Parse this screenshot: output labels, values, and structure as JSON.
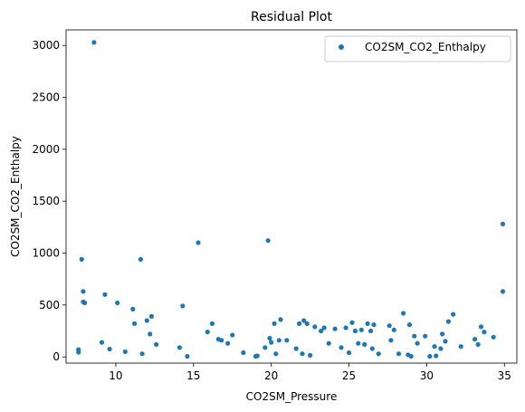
{
  "chart_data": {
    "type": "scatter",
    "title": "Residual Plot",
    "xlabel": "CO2SM_Pressure",
    "ylabel": "CO2SM_CO2_Enthalpy",
    "xlim": [
      6.8,
      35.8
    ],
    "ylim": [
      -60,
      3150
    ],
    "xticks": [
      10,
      15,
      20,
      25,
      30,
      35
    ],
    "yticks": [
      0,
      500,
      1000,
      1500,
      2000,
      2500,
      3000
    ],
    "grid": false,
    "legend_position": "top-right",
    "series": [
      {
        "name": "CO2SM_CO2_Enthalpy",
        "color": "#1f77b4",
        "x": [
          7.6,
          7.6,
          7.8,
          7.9,
          7.9,
          8.0,
          8.6,
          9.1,
          9.3,
          9.6,
          10.1,
          10.6,
          11.1,
          11.2,
          11.6,
          11.7,
          12.0,
          12.2,
          12.3,
          12.6,
          14.1,
          14.3,
          14.6,
          15.3,
          15.9,
          16.2,
          16.6,
          16.8,
          17.2,
          17.5,
          18.2,
          19.0,
          19.1,
          19.6,
          19.8,
          19.9,
          20.0,
          20.2,
          20.3,
          20.5,
          20.6,
          21.0,
          21.6,
          21.8,
          22.0,
          22.1,
          22.3,
          22.5,
          22.8,
          23.2,
          23.4,
          23.7,
          24.1,
          24.5,
          24.8,
          25.0,
          25.2,
          25.4,
          25.6,
          25.8,
          26.0,
          26.2,
          26.4,
          26.5,
          26.6,
          26.9,
          27.6,
          27.7,
          27.9,
          28.2,
          28.5,
          28.8,
          28.9,
          29.0,
          29.2,
          29.4,
          29.9,
          30.2,
          30.5,
          30.6,
          30.9,
          31.0,
          31.2,
          31.4,
          31.7,
          32.2,
          33.1,
          33.3,
          33.5,
          33.7,
          34.3,
          34.9,
          34.9
        ],
        "y": [
          70,
          45,
          940,
          630,
          530,
          520,
          3030,
          140,
          600,
          75,
          520,
          50,
          460,
          320,
          940,
          30,
          350,
          220,
          390,
          120,
          90,
          490,
          5,
          1100,
          240,
          320,
          170,
          160,
          130,
          210,
          40,
          5,
          10,
          90,
          1120,
          180,
          140,
          320,
          30,
          160,
          360,
          160,
          80,
          320,
          30,
          350,
          320,
          15,
          290,
          250,
          280,
          130,
          270,
          90,
          280,
          40,
          330,
          250,
          130,
          260,
          120,
          320,
          250,
          80,
          310,
          30,
          300,
          160,
          260,
          30,
          420,
          20,
          310,
          5,
          200,
          130,
          200,
          5,
          100,
          10,
          80,
          220,
          150,
          340,
          410,
          100,
          170,
          120,
          290,
          240,
          190,
          1280,
          630
        ]
      }
    ]
  }
}
